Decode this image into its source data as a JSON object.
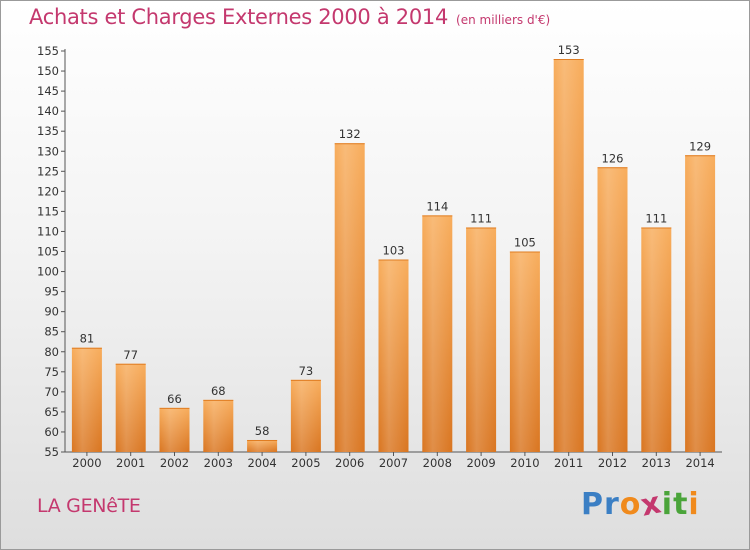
{
  "header": {
    "title": "Achats et Charges Externes 2000 à 2014",
    "subtitle": "(en milliers d'€)"
  },
  "place_name": "LA GENêTE",
  "logo": {
    "letters": [
      "P",
      "r",
      "o",
      "x",
      "i",
      "t",
      "i"
    ],
    "colors": [
      "#3b7fc4",
      "#3b7fc4",
      "#f08a1c",
      "#c4386e",
      "#4aa43a",
      "#4aa43a",
      "#f08a1c"
    ]
  },
  "chart_data": {
    "type": "bar",
    "title": "Achats et Charges Externes 2000 à 2014",
    "subtitle": "(en milliers d'€)",
    "xlabel": "",
    "ylabel": "",
    "categories": [
      "2000",
      "2001",
      "2002",
      "2003",
      "2004",
      "2005",
      "2006",
      "2007",
      "2008",
      "2009",
      "2010",
      "2011",
      "2012",
      "2013",
      "2014"
    ],
    "values": [
      81,
      77,
      66,
      68,
      58,
      73,
      132,
      103,
      114,
      111,
      105,
      153,
      126,
      111,
      129
    ],
    "ylim": [
      55,
      155
    ],
    "yticks": [
      55,
      60,
      65,
      70,
      75,
      80,
      85,
      90,
      95,
      100,
      105,
      110,
      115,
      120,
      125,
      130,
      135,
      140,
      145,
      150,
      155
    ],
    "grid": false,
    "legend": "none",
    "bar_color": "#f5a04a",
    "bar_color_dark": "#d97520"
  }
}
